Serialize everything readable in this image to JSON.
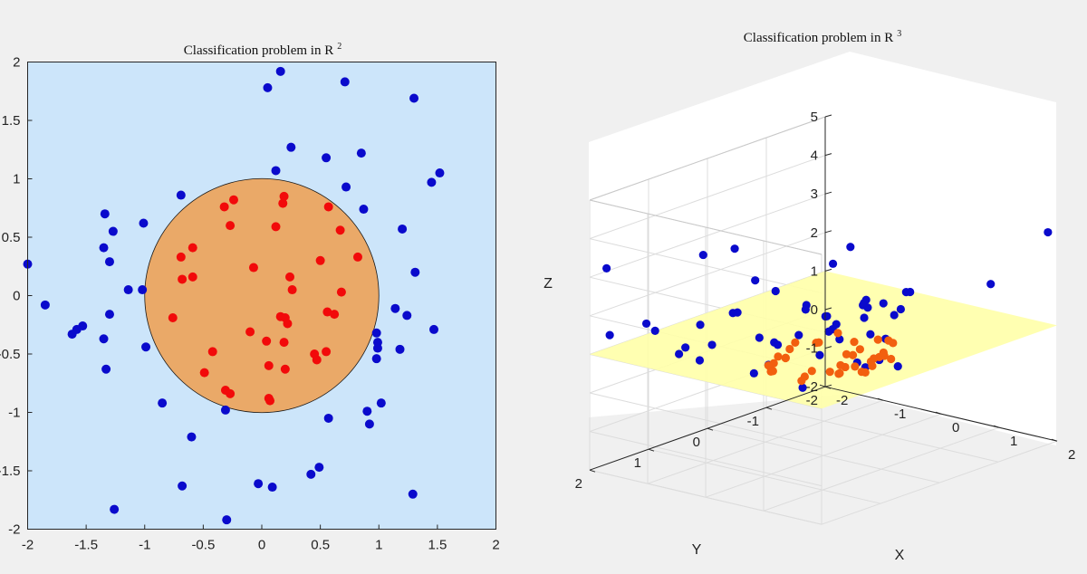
{
  "colors": {
    "figure_bg": "#f0f0f0",
    "plot2d_bg": "#cce5fa",
    "circle_fill": "#eaa968",
    "outside_point": "#0a0acc",
    "inside_point_2d": "#f20a0a",
    "inside_point_3d": "#f25f0f",
    "plane_fill": "#ffffa8"
  },
  "chart_data": [
    {
      "type": "scatter",
      "title": "Classification problem in R",
      "title_superscript": "2",
      "xlim": [
        -2,
        2
      ],
      "ylim": [
        -2,
        2
      ],
      "xticks": [
        "-2",
        "-1.5",
        "-1",
        "-0.5",
        "0",
        "0.5",
        "1",
        "1.5",
        "2"
      ],
      "yticks": [
        "2",
        "1.5",
        "1",
        "0.5",
        "0",
        "-0.5",
        "-1",
        "-1.5",
        "-2"
      ],
      "decision_boundary": {
        "shape": "circle",
        "center": [
          0,
          0
        ],
        "radius": 1
      },
      "series": [
        {
          "name": "outside",
          "color": "#0a0acc",
          "points": [
            [
              0.16,
              1.92
            ],
            [
              0.05,
              1.78
            ],
            [
              0.71,
              1.83
            ],
            [
              1.3,
              1.69
            ],
            [
              0.25,
              1.27
            ],
            [
              0.55,
              1.18
            ],
            [
              0.85,
              1.22
            ],
            [
              0.12,
              1.07
            ],
            [
              1.45,
              0.97
            ],
            [
              1.52,
              1.05
            ],
            [
              0.72,
              0.93
            ],
            [
              -0.69,
              0.86
            ],
            [
              0.87,
              0.74
            ],
            [
              -1.34,
              0.7
            ],
            [
              -1.01,
              0.62
            ],
            [
              -1.27,
              0.55
            ],
            [
              1.2,
              0.57
            ],
            [
              -1.35,
              0.41
            ],
            [
              -1.3,
              0.29
            ],
            [
              -2.0,
              0.27
            ],
            [
              1.31,
              0.2
            ],
            [
              -1.14,
              0.05
            ],
            [
              -1.02,
              0.05
            ],
            [
              -1.85,
              -0.08
            ],
            [
              1.14,
              -0.11
            ],
            [
              1.24,
              -0.17
            ],
            [
              -1.3,
              -0.16
            ],
            [
              -1.53,
              -0.26
            ],
            [
              -1.58,
              -0.29
            ],
            [
              -1.62,
              -0.33
            ],
            [
              1.47,
              -0.29
            ],
            [
              0.98,
              -0.32
            ],
            [
              -1.35,
              -0.37
            ],
            [
              0.99,
              -0.4
            ],
            [
              -0.99,
              -0.44
            ],
            [
              0.99,
              -0.45
            ],
            [
              1.18,
              -0.46
            ],
            [
              0.98,
              -0.54
            ],
            [
              -1.33,
              -0.63
            ],
            [
              -0.85,
              -0.92
            ],
            [
              1.02,
              -0.92
            ],
            [
              -0.31,
              -0.98
            ],
            [
              0.9,
              -0.99
            ],
            [
              0.57,
              -1.05
            ],
            [
              0.92,
              -1.1
            ],
            [
              -0.6,
              -1.21
            ],
            [
              0.49,
              -1.47
            ],
            [
              0.42,
              -1.53
            ],
            [
              -0.68,
              -1.63
            ],
            [
              -0.03,
              -1.61
            ],
            [
              0.09,
              -1.64
            ],
            [
              1.29,
              -1.7
            ],
            [
              -1.26,
              -1.83
            ],
            [
              -0.3,
              -1.92
            ]
          ]
        },
        {
          "name": "inside",
          "color": "#f20a0a",
          "points": [
            [
              0.19,
              0.85
            ],
            [
              -0.24,
              0.82
            ],
            [
              0.18,
              0.79
            ],
            [
              -0.32,
              0.76
            ],
            [
              0.57,
              0.76
            ],
            [
              -0.27,
              0.6
            ],
            [
              0.12,
              0.59
            ],
            [
              0.67,
              0.56
            ],
            [
              -0.59,
              0.41
            ],
            [
              -0.69,
              0.33
            ],
            [
              0.82,
              0.33
            ],
            [
              0.5,
              0.3
            ],
            [
              -0.07,
              0.24
            ],
            [
              -0.59,
              0.16
            ],
            [
              0.24,
              0.16
            ],
            [
              -0.68,
              0.14
            ],
            [
              0.26,
              0.05
            ],
            [
              0.68,
              0.03
            ],
            [
              0.56,
              -0.14
            ],
            [
              0.62,
              -0.16
            ],
            [
              0.16,
              -0.18
            ],
            [
              0.2,
              -0.19
            ],
            [
              -0.76,
              -0.19
            ],
            [
              0.22,
              -0.24
            ],
            [
              -0.1,
              -0.31
            ],
            [
              0.04,
              -0.39
            ],
            [
              0.19,
              -0.4
            ],
            [
              -0.42,
              -0.48
            ],
            [
              0.55,
              -0.48
            ],
            [
              0.45,
              -0.5
            ],
            [
              0.47,
              -0.55
            ],
            [
              0.06,
              -0.6
            ],
            [
              0.2,
              -0.63
            ],
            [
              -0.49,
              -0.66
            ],
            [
              -0.31,
              -0.81
            ],
            [
              -0.27,
              -0.84
            ],
            [
              0.06,
              -0.88
            ],
            [
              0.07,
              -0.9
            ]
          ]
        }
      ]
    },
    {
      "type": "scatter3d",
      "title": "Classification problem in R",
      "title_superscript": "3",
      "xlabel": "X",
      "ylabel": "Y",
      "zlabel": "Z",
      "xlim": [
        -2,
        2
      ],
      "ylim": [
        -2,
        2
      ],
      "zlim": [
        -2,
        5
      ],
      "xticks": [
        "-2",
        "-1",
        "0",
        "1",
        "2"
      ],
      "yticks": [
        "2",
        "1",
        "0",
        "-1",
        "-2"
      ],
      "zticks": [
        "5",
        "4",
        "3",
        "2",
        "1",
        "0",
        "-1",
        "-2"
      ],
      "decision_plane": {
        "z": 1
      },
      "series": [
        {
          "name": "outside",
          "color": "#0a0acc",
          "points": [
            [
              -0.88,
              0.64,
              3.4
            ],
            [
              -1.77,
              1.94,
              3.28
            ],
            [
              -1.5,
              1.53,
              1.72
            ],
            [
              -2.04,
              1.62,
              1.28
            ],
            [
              1.73,
              -2.11,
              3.26
            ],
            [
              0.71,
              0.24,
              3.79
            ],
            [
              0.48,
              0.31,
              3.31
            ],
            [
              0.95,
              -0.47,
              2.32
            ],
            [
              -0.1,
              0.19,
              1.97
            ],
            [
              -1.85,
              0.22,
              2.67
            ],
            [
              -1.2,
              0.91,
              1.46
            ],
            [
              -0.31,
              0.53,
              1.11
            ],
            [
              -1.39,
              1.49,
              1.55
            ],
            [
              -0.08,
              0.34,
              1.28
            ],
            [
              -0.26,
              0.52,
              1.06
            ],
            [
              0.18,
              0.02,
              1.35
            ],
            [
              1.83,
              -1.04,
              2.53
            ],
            [
              -0.46,
              0.48,
              0.45
            ],
            [
              -1.3,
              0.18,
              1.35
            ],
            [
              -1.06,
              1.3,
              1.13
            ],
            [
              0.84,
              -0.23,
              1.2
            ],
            [
              0.46,
              -0.75,
              1.4
            ],
            [
              -1.14,
              1.33,
              0.95
            ],
            [
              -1.19,
              0.72,
              0.84
            ],
            [
              -0.11,
              -0.78,
              1.44
            ],
            [
              -1.26,
              0.86,
              0.49
            ],
            [
              0.41,
              0.13,
              1.23
            ],
            [
              -1.5,
              0.06,
              1.2
            ],
            [
              0.96,
              -0.32,
              0.48
            ],
            [
              -0.69,
              0.5,
              0.16
            ],
            [
              -0.83,
              0.27,
              0.91
            ],
            [
              -0.34,
              -0.37,
              1.29
            ],
            [
              0.66,
              -0.3,
              0.55
            ],
            [
              0.06,
              -0.16,
              1.34
            ],
            [
              0.16,
              0.22,
              0.78
            ],
            [
              -1.39,
              -0.21,
              1.94
            ],
            [
              0.11,
              -0.69,
              0.81
            ],
            [
              -0.69,
              -0.74,
              0.97
            ],
            [
              0.06,
              -0.96,
              1.45
            ],
            [
              -0.04,
              -0.73,
              1.55
            ],
            [
              0.49,
              -0.99,
              1.88
            ],
            [
              -0.51,
              -0.2,
              1.5
            ],
            [
              0.47,
              -0.25,
              0.32
            ],
            [
              0.4,
              -0.92,
              1.44
            ],
            [
              -0.39,
              -1.11,
              1.3
            ],
            [
              -0.17,
              -0.92,
              1.28
            ],
            [
              0.17,
              0.52,
              0.1
            ],
            [
              -0.19,
              -0.88,
              1.03
            ],
            [
              0.44,
              -0.14,
              0.49
            ],
            [
              -1.18,
              -0.35,
              1.66
            ],
            [
              -0.04,
              -0.13,
              1.13
            ]
          ]
        },
        {
          "name": "inside",
          "color": "#f25f0f",
          "points": [
            [
              -0.23,
              0.63,
              0.45
            ],
            [
              0.71,
              -0.25,
              0.67
            ],
            [
              -0.44,
              0.41,
              0.46
            ],
            [
              0.51,
              -0.68,
              0.73
            ],
            [
              -0.12,
              -0.04,
              0.87
            ],
            [
              -0.51,
              0.07,
              0.62
            ],
            [
              -0.43,
              0.51,
              0.46
            ],
            [
              0.23,
              -0.05,
              0.19
            ],
            [
              0.25,
              -0.29,
              0.24
            ],
            [
              -0.6,
              0.05,
              0.35
            ],
            [
              0.6,
              -0.06,
              0.35
            ],
            [
              0.08,
              0.45,
              0.21
            ],
            [
              0.33,
              -0.71,
              0.32
            ],
            [
              0.23,
              -0.7,
              0.71
            ],
            [
              -0.13,
              -0.52,
              0.3
            ],
            [
              0.6,
              -0.43,
              0.65
            ],
            [
              -0.51,
              0.39,
              0.21
            ],
            [
              -0.26,
              -0.06,
              0.07
            ],
            [
              -0.47,
              0.18,
              0.46
            ],
            [
              0.31,
              -0.8,
              0.66
            ],
            [
              0.52,
              -0.2,
              0.23
            ],
            [
              0.73,
              -0.43,
              0.53
            ],
            [
              -0.18,
              0.14,
              0.06
            ],
            [
              0.31,
              -0.55,
              0.33
            ],
            [
              0.63,
              -0.21,
              0.43
            ],
            [
              0.08,
              -0.18,
              0.05
            ],
            [
              -0.08,
              -0.7,
              0.35
            ],
            [
              -0.05,
              -0.42,
              0.05
            ],
            [
              -0.52,
              -0.39,
              0.53
            ],
            [
              -0.04,
              -0.33,
              0.15
            ],
            [
              -0.21,
              -0.73,
              0.48
            ],
            [
              -0.05,
              -0.55,
              0.29
            ],
            [
              -0.07,
              -0.18,
              0.05
            ],
            [
              -0.7,
              -0.21,
              0.57
            ],
            [
              0.18,
              -0.63,
              0.16
            ],
            [
              -0.39,
              -0.63,
              0.7
            ],
            [
              -0.66,
              0.12,
              0.4
            ]
          ]
        }
      ]
    }
  ]
}
